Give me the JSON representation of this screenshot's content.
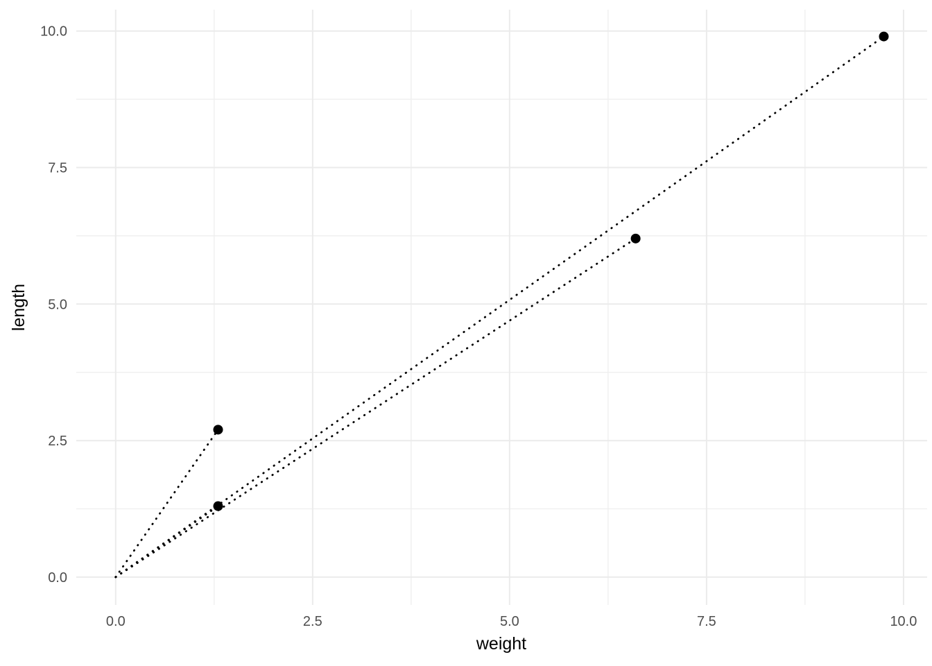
{
  "chart_data": {
    "type": "scatter",
    "title": "",
    "xlabel": "weight",
    "ylabel": "length",
    "x_ticks": [
      0,
      2.5,
      5,
      7.5,
      10
    ],
    "x_tick_labels": [
      "0.0",
      "2.5",
      "5.0",
      "7.5",
      "10.0"
    ],
    "y_ticks": [
      0,
      2.5,
      5,
      7.5,
      10
    ],
    "y_tick_labels": [
      "0.0",
      "2.5",
      "5.0",
      "7.5",
      "10.0"
    ],
    "x_minor_ticks": [
      1.25,
      3.75,
      6.25,
      8.75
    ],
    "y_minor_ticks": [
      1.25,
      3.75,
      6.25,
      8.75
    ],
    "xlim": [
      -0.5,
      10.3
    ],
    "ylim": [
      -0.51,
      10.39
    ],
    "grid": "major+minor",
    "legend_position": "none",
    "series": [
      {
        "name": "observations",
        "marker": "filled-circle",
        "points": [
          {
            "weight": 1.3,
            "length": 2.7
          },
          {
            "weight": 1.3,
            "length": 1.3
          },
          {
            "weight": 6.6,
            "length": 6.2
          },
          {
            "weight": 9.75,
            "length": 9.9
          }
        ]
      }
    ],
    "segments": [
      {
        "x1": 0,
        "y1": 0,
        "x2": 1.3,
        "y2": 2.7
      },
      {
        "x1": 0,
        "y1": 0,
        "x2": 1.3,
        "y2": 1.3
      },
      {
        "x1": 0,
        "y1": 0,
        "x2": 6.6,
        "y2": 6.2
      },
      {
        "x1": 0,
        "y1": 0,
        "x2": 9.75,
        "y2": 9.9
      }
    ],
    "segment_style": "dotted",
    "colors": {
      "background": "#ffffff",
      "points": "#000000",
      "segments": "#000000",
      "grid_major": "#ebebeb",
      "grid_minor": "#efefef",
      "tick_text": "#4d4d4d",
      "axis_title": "#000000"
    }
  }
}
